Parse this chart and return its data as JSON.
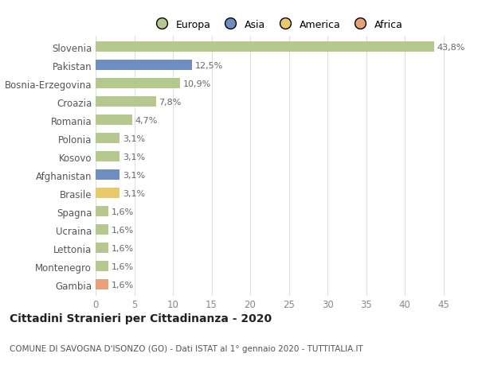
{
  "categories": [
    "Slovenia",
    "Pakistan",
    "Bosnia-Erzegovina",
    "Croazia",
    "Romania",
    "Polonia",
    "Kosovo",
    "Afghanistan",
    "Brasile",
    "Spagna",
    "Ucraina",
    "Lettonia",
    "Montenegro",
    "Gambia"
  ],
  "values": [
    43.8,
    12.5,
    10.9,
    7.8,
    4.7,
    3.1,
    3.1,
    3.1,
    3.1,
    1.6,
    1.6,
    1.6,
    1.6,
    1.6
  ],
  "labels": [
    "43,8%",
    "12,5%",
    "10,9%",
    "7,8%",
    "4,7%",
    "3,1%",
    "3,1%",
    "3,1%",
    "3,1%",
    "1,6%",
    "1,6%",
    "1,6%",
    "1,6%",
    "1,6%"
  ],
  "colors": [
    "#b5c98e",
    "#6d8ebf",
    "#b5c98e",
    "#b5c98e",
    "#b5c98e",
    "#b5c98e",
    "#b5c98e",
    "#6d8ebf",
    "#e8c96b",
    "#b5c98e",
    "#b5c98e",
    "#b5c98e",
    "#b5c98e",
    "#e8a07a"
  ],
  "legend_labels": [
    "Europa",
    "Asia",
    "America",
    "Africa"
  ],
  "legend_colors": [
    "#b5c98e",
    "#6d8ebf",
    "#e8c96b",
    "#e8a07a"
  ],
  "title_main": "Cittadini Stranieri per Cittadinanza - 2020",
  "title_sub": "COMUNE DI SAVOGNA D'ISONZO (GO) - Dati ISTAT al 1° gennaio 2020 - TUTTITALIA.IT",
  "xlim": [
    0,
    47
  ],
  "xticks": [
    0,
    5,
    10,
    15,
    20,
    25,
    30,
    35,
    40,
    45
  ],
  "background_color": "#ffffff",
  "grid_color": "#e0e0e0"
}
